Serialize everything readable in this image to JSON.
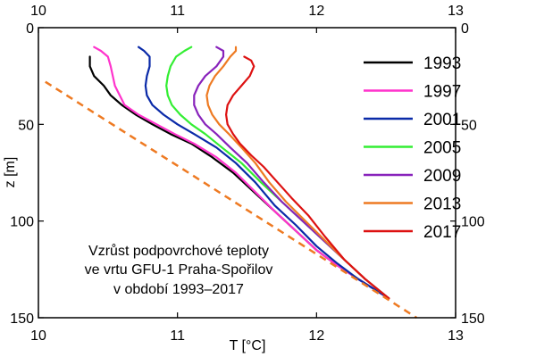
{
  "chart_data": {
    "type": "line",
    "title": "",
    "xlabel": "T [°C]",
    "ylabel": "z [m]",
    "xlim": [
      10,
      13
    ],
    "ylim": [
      0,
      150
    ],
    "y_inverted": true,
    "x_ticks": [
      10,
      11,
      12,
      13
    ],
    "y_ticks": [
      0,
      50,
      100,
      150
    ],
    "grid": false,
    "legend_position": "right",
    "annotation": [
      "Vzrůst podpovrchové teploty",
      "ve vrtu GFU-1 Praha-Spořilov",
      "v období 1993–2017"
    ],
    "series": [
      {
        "name": "1993",
        "color": "#000000",
        "x": [
          10.37,
          10.37,
          10.4,
          10.47,
          10.52,
          10.6,
          10.7,
          10.82,
          10.95,
          11.1,
          11.25,
          11.4,
          11.55,
          11.7,
          11.85,
          12.0,
          12.15,
          12.3,
          12.52
        ],
        "z": [
          15,
          20,
          25,
          30,
          35,
          40,
          45,
          50,
          55,
          60,
          67,
          75,
          85,
          95,
          105,
          115,
          123,
          130,
          140
        ]
      },
      {
        "name": "1997",
        "color": "#ff33cc",
        "x": [
          10.4,
          10.45,
          10.5,
          10.52,
          10.55,
          10.62,
          10.72,
          10.85,
          10.98,
          11.12,
          11.28,
          11.42,
          11.56,
          11.7,
          11.85,
          12.0,
          12.15,
          12.3,
          12.52
        ],
        "z": [
          10,
          12,
          15,
          20,
          30,
          40,
          45,
          50,
          55,
          60,
          67,
          75,
          85,
          95,
          105,
          115,
          123,
          130,
          140
        ]
      },
      {
        "name": "2001",
        "color": "#0a2aa8",
        "x": [
          10.72,
          10.76,
          10.8,
          10.8,
          10.78,
          10.77,
          10.78,
          10.82,
          10.9,
          11.0,
          11.12,
          11.28,
          11.42,
          11.56,
          11.7,
          11.85,
          12.0,
          12.15,
          12.3,
          12.52
        ],
        "z": [
          10,
          12,
          15,
          20,
          25,
          30,
          35,
          40,
          45,
          50,
          55,
          62,
          70,
          80,
          92,
          102,
          113,
          122,
          130,
          140
        ]
      },
      {
        "name": "2005",
        "color": "#33ee33",
        "x": [
          11.1,
          11.05,
          10.99,
          10.95,
          10.93,
          10.92,
          10.93,
          10.96,
          11.02,
          11.1,
          11.2,
          11.32,
          11.46,
          11.6,
          11.75,
          11.9,
          12.05,
          12.2,
          12.35,
          12.52
        ],
        "z": [
          10,
          12,
          15,
          20,
          25,
          30,
          35,
          40,
          45,
          50,
          55,
          62,
          70,
          80,
          90,
          100,
          110,
          120,
          130,
          140
        ]
      },
      {
        "name": "2009",
        "color": "#8822bb",
        "x": [
          11.28,
          11.33,
          11.33,
          11.28,
          11.2,
          11.15,
          11.12,
          11.12,
          11.15,
          11.2,
          11.28,
          11.38,
          11.5,
          11.62,
          11.75,
          11.9,
          12.05,
          12.2,
          12.35,
          12.52
        ],
        "z": [
          10,
          12,
          15,
          20,
          25,
          30,
          35,
          40,
          45,
          50,
          55,
          62,
          70,
          80,
          90,
          100,
          110,
          120,
          130,
          140
        ]
      },
      {
        "name": "2013",
        "color": "#ee7a22",
        "x": [
          11.42,
          11.42,
          11.38,
          11.33,
          11.27,
          11.23,
          11.21,
          11.22,
          11.25,
          11.3,
          11.37,
          11.46,
          11.56,
          11.66,
          11.78,
          11.92,
          12.06,
          12.2,
          12.35,
          12.52
        ],
        "z": [
          10,
          12,
          15,
          20,
          25,
          30,
          35,
          40,
          45,
          50,
          55,
          62,
          70,
          80,
          90,
          100,
          110,
          120,
          130,
          140
        ]
      },
      {
        "name": "2017",
        "color": "#dd1111",
        "x": [
          11.48,
          11.53,
          11.55,
          11.52,
          11.46,
          11.4,
          11.36,
          11.35,
          11.36,
          11.4,
          11.45,
          11.53,
          11.62,
          11.72,
          11.82,
          11.94,
          12.06,
          12.2,
          12.35,
          12.52
        ],
        "z": [
          15,
          17,
          20,
          25,
          30,
          35,
          40,
          45,
          50,
          55,
          60,
          66,
          72,
          80,
          88,
          97,
          108,
          120,
          130,
          140
        ]
      }
    ],
    "trend": {
      "color": "#ee7a22",
      "x": [
        10.05,
        12.72
      ],
      "z": [
        28,
        150
      ]
    }
  }
}
